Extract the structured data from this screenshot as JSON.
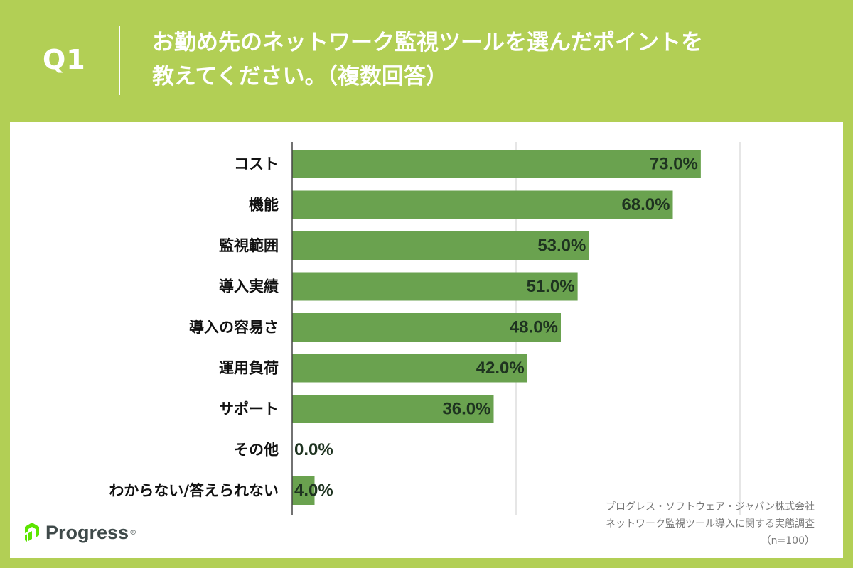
{
  "header": {
    "question_label": "Q1",
    "title_line1": "お勤め先のネットワーク監視ツールを選んだポイントを",
    "title_line2": "教えてください。（複数回答）"
  },
  "colors": {
    "background": "#b2cf55",
    "panel": "#ffffff",
    "bar": "#6aa24f",
    "value_text": "#1e3320",
    "label_text": "#111111",
    "grid": "#cccccc"
  },
  "chart_data": {
    "type": "bar",
    "orientation": "horizontal",
    "categories": [
      "コスト",
      "機能",
      "監視範囲",
      "導入実績",
      "導入の容易さ",
      "運用負荷",
      "サポート",
      "その他",
      "わからない/答えられない"
    ],
    "values": [
      73.0,
      68.0,
      53.0,
      51.0,
      48.0,
      42.0,
      36.0,
      0.0,
      4.0
    ],
    "value_labels": [
      "73.0%",
      "68.0%",
      "53.0%",
      "51.0%",
      "48.0%",
      "42.0%",
      "36.0%",
      "0.0%",
      "4.0%"
    ],
    "xlim": [
      0,
      80
    ],
    "grid_step": 20,
    "grid": true
  },
  "source": {
    "line1": "プログレス・ソフトウェア・ジャパン株式会社",
    "line2": "ネットワーク監視ツール導入に関する実態調査",
    "line3": "（n=100）"
  },
  "logo": {
    "text": "Progress",
    "icon": "progress-logo-icon"
  }
}
